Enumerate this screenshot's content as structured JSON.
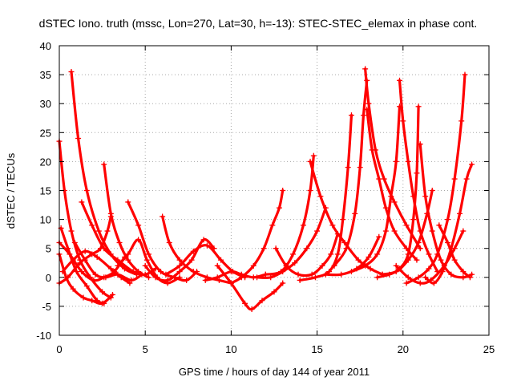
{
  "chart_data": {
    "type": "line",
    "title": "dSTEC Iono. truth (mssc, Lon=270, Lat=30, h=-13): STEC-STEC_elemax in phase cont.",
    "xlabel": "GPS time / hours of day 144 of year 2011",
    "ylabel": "dSTEC  / TECUs",
    "xlim": [
      0,
      25
    ],
    "ylim": [
      -10,
      40
    ],
    "xticks": [
      0,
      5,
      10,
      15,
      20,
      25
    ],
    "yticks": [
      -10,
      -5,
      0,
      5,
      10,
      15,
      20,
      25,
      30,
      35,
      40
    ],
    "grid": true,
    "marker": "plus",
    "color": "#ff0000",
    "series": [
      {
        "points": [
          [
            0.0,
            23.5
          ],
          [
            0.3,
            15
          ],
          [
            0.7,
            8
          ],
          [
            1.2,
            3
          ],
          [
            1.8,
            0
          ],
          [
            2.5,
            -2.5
          ],
          [
            3.0,
            -3.5
          ]
        ]
      },
      {
        "points": [
          [
            0.1,
            8.5
          ],
          [
            0.5,
            5
          ],
          [
            1.0,
            1
          ],
          [
            1.6,
            -1.5
          ],
          [
            2.2,
            -4
          ],
          [
            2.6,
            -4.5
          ]
        ]
      },
      {
        "points": [
          [
            0.0,
            4.0
          ],
          [
            0.4,
            0
          ],
          [
            0.8,
            -2
          ],
          [
            1.4,
            -3.5
          ],
          [
            1.9,
            -4
          ],
          [
            2.5,
            -4.5
          ],
          [
            3.1,
            -3.0
          ]
        ]
      },
      {
        "points": [
          [
            0.7,
            35.5
          ],
          [
            1.1,
            24
          ],
          [
            1.6,
            15
          ],
          [
            2.3,
            8
          ],
          [
            3.0,
            4
          ],
          [
            3.8,
            1.5
          ],
          [
            4.5,
            0.5
          ]
        ]
      },
      {
        "points": [
          [
            0.0,
            -1.0
          ],
          [
            0.5,
            0
          ],
          [
            1.2,
            2.5
          ],
          [
            1.9,
            4
          ],
          [
            2.4,
            5
          ],
          [
            2.8,
            8
          ],
          [
            3.0,
            10.5
          ]
        ]
      },
      {
        "points": [
          [
            0.0,
            6.0
          ],
          [
            0.6,
            4
          ],
          [
            1.3,
            1
          ],
          [
            2.0,
            -0.5
          ],
          [
            2.6,
            0
          ],
          [
            3.2,
            1
          ],
          [
            3.8,
            3.5
          ]
        ]
      },
      {
        "points": [
          [
            0.9,
            6.0
          ],
          [
            1.5,
            3
          ],
          [
            2.1,
            0.5
          ],
          [
            2.7,
            0
          ],
          [
            3.4,
            0.5
          ],
          [
            4.2,
            -0.5
          ],
          [
            4.8,
            0.5
          ]
        ]
      },
      {
        "points": [
          [
            1.3,
            13.0
          ],
          [
            1.9,
            9
          ],
          [
            2.6,
            5
          ],
          [
            3.4,
            3
          ],
          [
            4.3,
            1
          ],
          [
            5.0,
            0.5
          ],
          [
            5.6,
            1.5
          ]
        ]
      },
      {
        "points": [
          [
            0.2,
            1.0
          ],
          [
            0.8,
            3
          ],
          [
            1.5,
            4.5
          ],
          [
            2.2,
            3.5
          ],
          [
            3.0,
            1.5
          ],
          [
            3.6,
            0
          ],
          [
            4.1,
            -1
          ]
        ]
      },
      {
        "points": [
          [
            2.6,
            19.5
          ],
          [
            3.0,
            11
          ],
          [
            3.5,
            6
          ],
          [
            4.0,
            3
          ],
          [
            4.6,
            1
          ],
          [
            5.2,
            0
          ]
        ]
      },
      {
        "points": [
          [
            4.0,
            13.0
          ],
          [
            4.6,
            9
          ],
          [
            5.2,
            4
          ],
          [
            5.9,
            1
          ],
          [
            6.7,
            0
          ],
          [
            7.4,
            -0.5
          ],
          [
            8.0,
            1
          ]
        ]
      },
      {
        "points": [
          [
            6.0,
            10.5
          ],
          [
            6.4,
            6
          ],
          [
            7.0,
            3
          ],
          [
            7.8,
            1
          ],
          [
            8.6,
            0
          ],
          [
            9.3,
            -0.5
          ],
          [
            10.0,
            -1
          ]
        ]
      },
      {
        "points": [
          [
            3.4,
            2.0
          ],
          [
            4.0,
            4
          ],
          [
            4.6,
            6.5
          ],
          [
            5.1,
            3
          ],
          [
            5.7,
            0
          ],
          [
            6.3,
            -1
          ],
          [
            7.0,
            0
          ]
        ]
      },
      {
        "points": [
          [
            5.0,
            2.0
          ],
          [
            5.6,
            0
          ],
          [
            6.3,
            -0.5
          ],
          [
            7.0,
            1
          ],
          [
            7.7,
            3
          ],
          [
            8.4,
            6.5
          ],
          [
            9.0,
            5
          ]
        ]
      },
      {
        "points": [
          [
            6.2,
            0.5
          ],
          [
            7.0,
            2
          ],
          [
            7.8,
            4.5
          ],
          [
            8.6,
            5.5
          ],
          [
            9.4,
            3
          ],
          [
            10.1,
            1
          ],
          [
            10.8,
            0
          ]
        ]
      },
      {
        "points": [
          [
            8.5,
            -0.5
          ],
          [
            9.2,
            0
          ],
          [
            10.0,
            1
          ],
          [
            10.6,
            0.5
          ],
          [
            11.3,
            0
          ],
          [
            12.0,
            0.5
          ]
        ]
      },
      {
        "points": [
          [
            9.2,
            2.0
          ],
          [
            10.0,
            -1
          ],
          [
            10.8,
            -4.5
          ],
          [
            11.2,
            -5.5
          ],
          [
            11.8,
            -4
          ],
          [
            12.5,
            -2.5
          ],
          [
            13.0,
            -1
          ]
        ]
      },
      {
        "points": [
          [
            10.0,
            -1.0
          ],
          [
            10.6,
            0
          ],
          [
            11.3,
            2
          ],
          [
            11.9,
            5
          ],
          [
            12.4,
            9
          ],
          [
            12.8,
            12
          ],
          [
            13.0,
            15
          ]
        ]
      },
      {
        "points": [
          [
            12.6,
            5.0
          ],
          [
            13.2,
            2
          ],
          [
            13.9,
            0.5
          ],
          [
            14.7,
            0.5
          ],
          [
            15.3,
            2
          ],
          [
            15.8,
            4
          ],
          [
            16.2,
            7.5
          ]
        ]
      },
      {
        "points": [
          [
            11.5,
            0.0
          ],
          [
            12.3,
            0
          ],
          [
            13.0,
            1
          ],
          [
            13.7,
            2.5
          ],
          [
            14.4,
            5
          ],
          [
            15.0,
            8
          ],
          [
            15.5,
            12
          ]
        ]
      },
      {
        "points": [
          [
            12.0,
            0.5
          ],
          [
            12.9,
            1
          ],
          [
            13.6,
            4
          ],
          [
            14.2,
            9
          ],
          [
            14.6,
            15
          ],
          [
            14.8,
            21
          ]
        ]
      },
      {
        "points": [
          [
            14.6,
            20.0
          ],
          [
            15.2,
            14
          ],
          [
            15.9,
            9
          ],
          [
            16.6,
            6
          ],
          [
            17.4,
            3
          ],
          [
            18.1,
            1.5
          ],
          [
            18.8,
            0.5
          ]
        ]
      },
      {
        "points": [
          [
            14.0,
            -0.5
          ],
          [
            14.9,
            0
          ],
          [
            15.7,
            1
          ],
          [
            16.2,
            4
          ],
          [
            16.5,
            10
          ],
          [
            16.8,
            19
          ],
          [
            17.0,
            28
          ]
        ]
      },
      {
        "points": [
          [
            17.8,
            36.0
          ],
          [
            18.0,
            30
          ],
          [
            18.4,
            22
          ],
          [
            18.9,
            17
          ],
          [
            19.5,
            13
          ],
          [
            20.2,
            9
          ],
          [
            21.0,
            5
          ]
        ]
      },
      {
        "points": [
          [
            16.0,
            2.0
          ],
          [
            16.7,
            5
          ],
          [
            17.2,
            11
          ],
          [
            17.5,
            19
          ],
          [
            17.7,
            28
          ],
          [
            17.9,
            34
          ]
        ]
      },
      {
        "points": [
          [
            17.9,
            29.0
          ],
          [
            18.2,
            22
          ],
          [
            18.6,
            17
          ],
          [
            19.0,
            12
          ],
          [
            19.5,
            8
          ],
          [
            20.2,
            5
          ],
          [
            20.8,
            3
          ]
        ]
      },
      {
        "points": [
          [
            17.0,
            1.0
          ],
          [
            17.8,
            2
          ],
          [
            18.5,
            4
          ],
          [
            19.0,
            8
          ],
          [
            19.3,
            14
          ],
          [
            19.6,
            20
          ],
          [
            19.8,
            29.5
          ]
        ]
      },
      {
        "points": [
          [
            19.8,
            34.0
          ],
          [
            20.0,
            27
          ],
          [
            20.3,
            20
          ],
          [
            20.6,
            14
          ],
          [
            21.0,
            8
          ],
          [
            21.5,
            4
          ],
          [
            22.0,
            1
          ]
        ]
      },
      {
        "points": [
          [
            18.5,
            0.0
          ],
          [
            19.2,
            0.5
          ],
          [
            19.8,
            1.5
          ],
          [
            20.3,
            4
          ],
          [
            20.6,
            10
          ],
          [
            20.8,
            18
          ],
          [
            20.9,
            29.5
          ]
        ]
      },
      {
        "points": [
          [
            21.0,
            23.0
          ],
          [
            21.3,
            14
          ],
          [
            21.7,
            8
          ],
          [
            22.2,
            3
          ],
          [
            22.8,
            0.5
          ],
          [
            23.5,
            0
          ],
          [
            24.0,
            0.5
          ]
        ]
      },
      {
        "points": [
          [
            20.2,
            -1.0
          ],
          [
            20.9,
            0
          ],
          [
            21.5,
            1.5
          ],
          [
            22.0,
            4
          ],
          [
            22.6,
            10
          ],
          [
            23.0,
            17
          ],
          [
            23.4,
            27
          ],
          [
            23.6,
            35
          ]
        ]
      },
      {
        "points": [
          [
            21.3,
            0.0
          ],
          [
            21.8,
            -1
          ],
          [
            22.3,
            1
          ],
          [
            22.8,
            5
          ],
          [
            23.3,
            11
          ],
          [
            23.7,
            17
          ],
          [
            24.0,
            19.5
          ]
        ]
      },
      {
        "points": [
          [
            19.6,
            2.0
          ],
          [
            20.3,
            0
          ],
          [
            21.0,
            -1
          ],
          [
            21.6,
            -0.5
          ],
          [
            22.4,
            2
          ],
          [
            23.0,
            5
          ],
          [
            23.5,
            8
          ]
        ]
      },
      {
        "points": [
          [
            22.1,
            9.0
          ],
          [
            22.6,
            6
          ],
          [
            23.0,
            3
          ],
          [
            23.5,
            1
          ],
          [
            23.9,
            0
          ]
        ]
      },
      {
        "points": [
          [
            18.8,
            0.5
          ],
          [
            19.6,
            1
          ],
          [
            20.3,
            3
          ],
          [
            20.9,
            6
          ],
          [
            21.4,
            11
          ],
          [
            21.7,
            15
          ]
        ]
      },
      {
        "points": [
          [
            15.5,
            0.5
          ],
          [
            16.4,
            0.5
          ],
          [
            17.3,
            1.5
          ],
          [
            18.0,
            3.5
          ],
          [
            18.6,
            7
          ]
        ]
      }
    ]
  }
}
